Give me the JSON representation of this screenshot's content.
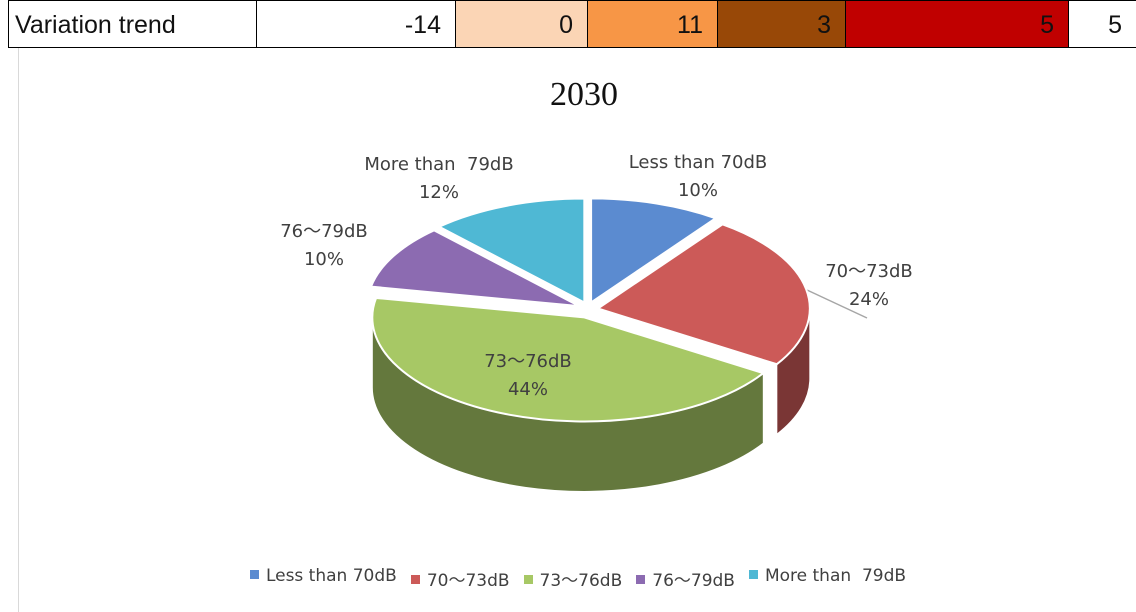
{
  "table": {
    "cells": [
      "Variation trend",
      "-14",
      "0",
      "11",
      "3",
      "5",
      "5"
    ],
    "colors": [
      "#ffffff",
      "#ffffff",
      "#fbd5b5",
      "#f79646",
      "#984807",
      "#c00000",
      "#ffffff"
    ]
  },
  "chart_data": {
    "type": "pie",
    "title": "2030",
    "categories": [
      "Less than 70dB",
      "70～73dB",
      "73～76dB",
      "76～79dB",
      "More than  79dB"
    ],
    "values": [
      10,
      24,
      44,
      10,
      12
    ],
    "value_labels": [
      "10%",
      "24%",
      "44%",
      "10%",
      "12%"
    ],
    "colors": [
      "#5b8bd0",
      "#cc5a58",
      "#a7c865",
      "#8c6bb1",
      "#4fb8d4"
    ],
    "legend": "bottom"
  }
}
